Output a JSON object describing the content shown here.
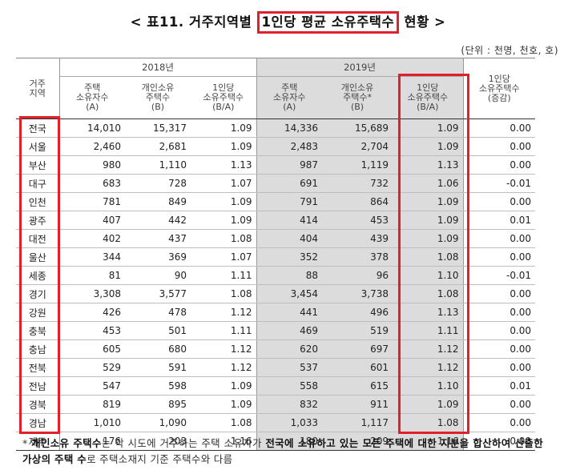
{
  "title": {
    "prefix": "< 표11. 거주지역별 ",
    "highlight": "1인당 평균 소유주택수",
    "suffix": " 현황 >"
  },
  "unit": "(단위 : 천명, 천호, 호)",
  "header": {
    "region": "거주\n지역",
    "year_2018": "2018년",
    "year_2019": "2019년",
    "owners": "주택\n소유자수\n(A)",
    "individual_houses": "개인소유\n주택수\n(B)",
    "individual_houses_2019": "개인소유\n주택수*\n(B)",
    "per_capita": "1인당\n소유주택수\n(B/A)",
    "change": "1인당\n소유주택수\n(증감)"
  },
  "rows": [
    {
      "region": "전국",
      "a18": "14,010",
      "b18": "15,317",
      "r18": "1.09",
      "a19": "14,336",
      "b19": "15,689",
      "r19": "1.09",
      "chg": "0.00"
    },
    {
      "region": "서울",
      "a18": "2,460",
      "b18": "2,681",
      "r18": "1.09",
      "a19": "2,483",
      "b19": "2,704",
      "r19": "1.09",
      "chg": "0.00"
    },
    {
      "region": "부산",
      "a18": "980",
      "b18": "1,110",
      "r18": "1.13",
      "a19": "987",
      "b19": "1,119",
      "r19": "1.13",
      "chg": "0.00"
    },
    {
      "region": "대구",
      "a18": "683",
      "b18": "728",
      "r18": "1.07",
      "a19": "691",
      "b19": "732",
      "r19": "1.06",
      "chg": "-0.01"
    },
    {
      "region": "인천",
      "a18": "781",
      "b18": "849",
      "r18": "1.09",
      "a19": "791",
      "b19": "864",
      "r19": "1.09",
      "chg": "0.00"
    },
    {
      "region": "광주",
      "a18": "407",
      "b18": "442",
      "r18": "1.09",
      "a19": "414",
      "b19": "453",
      "r19": "1.09",
      "chg": "0.01"
    },
    {
      "region": "대전",
      "a18": "402",
      "b18": "437",
      "r18": "1.08",
      "a19": "404",
      "b19": "439",
      "r19": "1.09",
      "chg": "0.00"
    },
    {
      "region": "울산",
      "a18": "344",
      "b18": "369",
      "r18": "1.07",
      "a19": "352",
      "b19": "378",
      "r19": "1.08",
      "chg": "0.00"
    },
    {
      "region": "세종",
      "a18": "81",
      "b18": "90",
      "r18": "1.11",
      "a19": "88",
      "b19": "96",
      "r19": "1.10",
      "chg": "-0.01"
    },
    {
      "region": "경기",
      "a18": "3,308",
      "b18": "3,577",
      "r18": "1.08",
      "a19": "3,454",
      "b19": "3,738",
      "r19": "1.08",
      "chg": "0.00"
    },
    {
      "region": "강원",
      "a18": "426",
      "b18": "478",
      "r18": "1.12",
      "a19": "441",
      "b19": "496",
      "r19": "1.13",
      "chg": "0.00"
    },
    {
      "region": "충북",
      "a18": "453",
      "b18": "501",
      "r18": "1.11",
      "a19": "469",
      "b19": "519",
      "r19": "1.11",
      "chg": "0.00"
    },
    {
      "region": "충남",
      "a18": "605",
      "b18": "680",
      "r18": "1.12",
      "a19": "620",
      "b19": "697",
      "r19": "1.12",
      "chg": "0.00"
    },
    {
      "region": "전북",
      "a18": "529",
      "b18": "591",
      "r18": "1.12",
      "a19": "537",
      "b19": "601",
      "r19": "1.12",
      "chg": "0.00"
    },
    {
      "region": "전남",
      "a18": "547",
      "b18": "598",
      "r18": "1.09",
      "a19": "558",
      "b19": "615",
      "r19": "1.10",
      "chg": "0.01"
    },
    {
      "region": "경북",
      "a18": "819",
      "b18": "895",
      "r18": "1.09",
      "a19": "832",
      "b19": "911",
      "r19": "1.09",
      "chg": "0.00"
    },
    {
      "region": "경남",
      "a18": "1,010",
      "b18": "1,090",
      "r18": "1.08",
      "a19": "1,033",
      "b19": "1,117",
      "r19": "1.08",
      "chg": "0.00"
    },
    {
      "region": "제주",
      "a18": "176",
      "b18": "203",
      "r18": "1.16",
      "a19": "180",
      "b19": "209",
      "r19": "1.16",
      "chg": "0.00"
    }
  ],
  "note": {
    "star": "* ",
    "term": "개인소유 주택수",
    "part1": "는 각 시도에 거주하는 주택 소유자가 ",
    "bold1": "전국에 소유하고 있는 모든 주택에 대한 지분을 합산하여 산출한 가상의 주택 수",
    "part2": "로 주택소재지 기준 주택수와 다름"
  },
  "colors": {
    "highlight_box": "#e0202a",
    "shade_2019": "#dcdcdc"
  }
}
